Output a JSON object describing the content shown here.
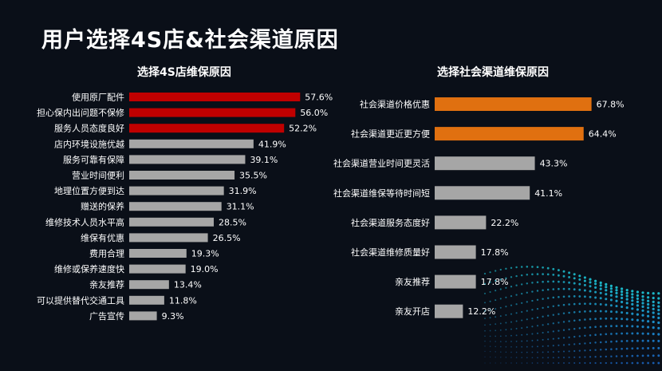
{
  "page": {
    "title": "用户选择4S店&社会渠道原因"
  },
  "colors": {
    "background": "#0a0f18",
    "highlight_red": "#c00000",
    "highlight_orange": "#e07010",
    "neutral_gray": "#a6a6a6",
    "text": "#ffffff"
  },
  "chart_data": [
    {
      "type": "bar",
      "orientation": "horizontal",
      "title": "选择4S店维保原因",
      "categories": [
        "使用原厂配件",
        "担心保内出问题不保修",
        "服务人员态度良好",
        "店内环境设施优越",
        "服务可靠有保障",
        "营业时间便利",
        "地理位置方便到达",
        "赠送的保养",
        "维修技术人员水平高",
        "维保有优惠",
        "费用合理",
        "维修或保养速度快",
        "亲友推荐",
        "可以提供替代交通工具",
        "广告宣传"
      ],
      "values": [
        57.6,
        56.0,
        52.2,
        41.9,
        39.1,
        35.5,
        31.9,
        31.1,
        28.5,
        26.5,
        19.3,
        19.0,
        13.4,
        11.8,
        9.3
      ],
      "value_labels": [
        "57.6%",
        "56.0%",
        "52.2%",
        "41.9%",
        "39.1%",
        "35.5%",
        "31.9%",
        "31.1%",
        "28.5%",
        "26.5%",
        "19.3%",
        "19.0%",
        "13.4%",
        "11.8%",
        "9.3%"
      ],
      "highlight_count": 3,
      "unit": "%",
      "xlim": [
        0,
        100
      ]
    },
    {
      "type": "bar",
      "orientation": "horizontal",
      "title": "选择社会渠道维保原因",
      "categories": [
        "社会渠道价格优惠",
        "社会渠道更近更方便",
        "社会渠道营业时间更灵活",
        "社会渠道维保等待时间短",
        "社会渠道服务态度好",
        "社会渠道维修质量好",
        "亲友推荐",
        "亲友开店"
      ],
      "values": [
        67.8,
        64.4,
        43.3,
        41.1,
        22.2,
        17.8,
        17.8,
        12.2
      ],
      "value_labels": [
        "67.8%",
        "64.4%",
        "43.3%",
        "41.1%",
        "22.2%",
        "17.8%",
        "17.8%",
        "12.2%"
      ],
      "highlight_count": 2,
      "unit": "%",
      "xlim": [
        0,
        100
      ]
    }
  ]
}
